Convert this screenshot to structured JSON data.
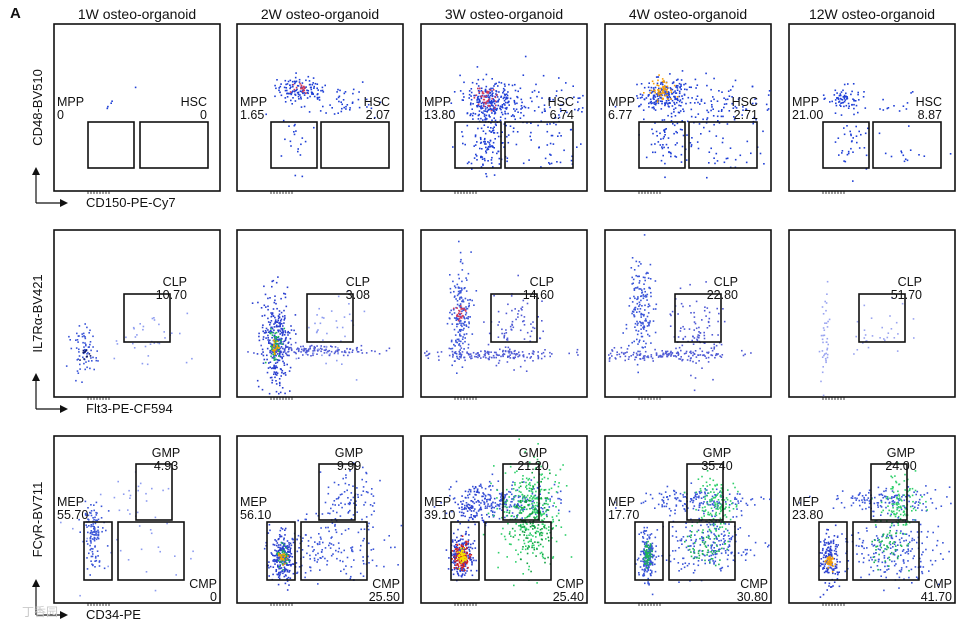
{
  "figure": {
    "panel_letter": "A",
    "watermark": "丁香园"
  },
  "chart_data": [
    {
      "type": "scatter",
      "subtype": "flow-cytometry-density-plots",
      "title": "",
      "columns": [
        "1W osteo-organoid",
        "2W osteo-organoid",
        "3W osteo-organoid",
        "4W osteo-organoid",
        "12W osteo-organoid"
      ],
      "rows": [
        {
          "name": "CD48 vs CD150",
          "xlabel": "CD150-PE-Cy7",
          "ylabel": "CD48-BV510",
          "gates": [
            {
              "name": "MPP",
              "values": [
                "0",
                "1.65",
                "13.80",
                "6.77",
                "21.00"
              ]
            },
            {
              "name": "HSC",
              "values": [
                "0",
                "2.07",
                "6.74",
                "2.71",
                "8.87"
              ]
            }
          ]
        },
        {
          "name": "IL7Ra vs Flt3",
          "xlabel": "Flt3-PE-CF594",
          "ylabel": "IL7Rα-BV421",
          "gates": [
            {
              "name": "CLP",
              "values": [
                "10.70",
                "3.08",
                "14.60",
                "22.80",
                "51.70"
              ]
            }
          ]
        },
        {
          "name": "FcyR vs CD34",
          "xlabel": "CD34-PE",
          "ylabel": "FCγR-BV711",
          "gates": [
            {
              "name": "GMP",
              "values": [
                "4.93",
                "9.99",
                "21.20",
                "35.40",
                "24.00"
              ]
            },
            {
              "name": "MEP",
              "values": [
                "55.70",
                "56.10",
                "39.10",
                "17.70",
                "23.80"
              ]
            },
            {
              "name": "CMP",
              "values": [
                "0",
                "25.50",
                "25.40",
                "30.80",
                "41.70"
              ]
            }
          ]
        }
      ]
    }
  ]
}
